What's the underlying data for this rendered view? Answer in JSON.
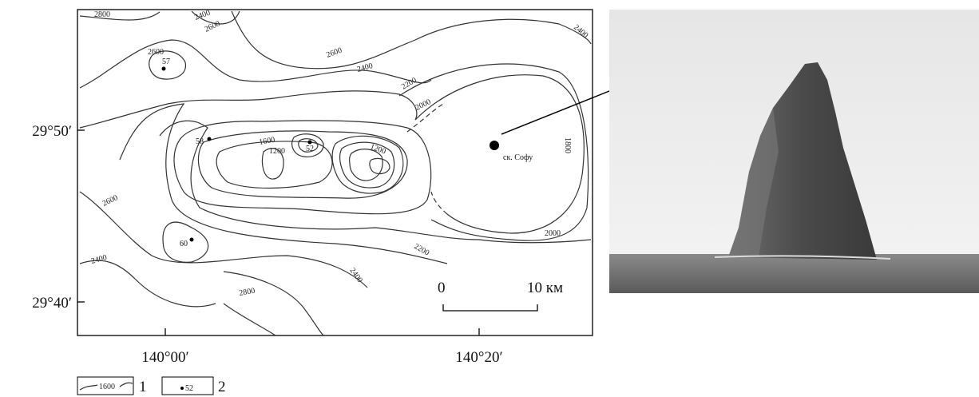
{
  "map": {
    "y_labels": [
      "29°50′",
      "29°40′"
    ],
    "x_labels": [
      "140°00′",
      "140°20′"
    ],
    "contour_labels": [
      "2800",
      "2400",
      "2600",
      "2600",
      "2600",
      "2400",
      "2200",
      "2000",
      "2400",
      "1800",
      "1600",
      "1200",
      "1200",
      "2600",
      "2400",
      "2000",
      "2200",
      "2400",
      "2800"
    ],
    "stations": [
      "57",
      "58",
      "52",
      "60"
    ],
    "site": "ск. Софу",
    "scale": {
      "start": "0",
      "end": "10 км"
    },
    "legend": [
      {
        "sample": "1600",
        "label": "1"
      },
      {
        "sample": "52",
        "label": "2"
      }
    ]
  }
}
